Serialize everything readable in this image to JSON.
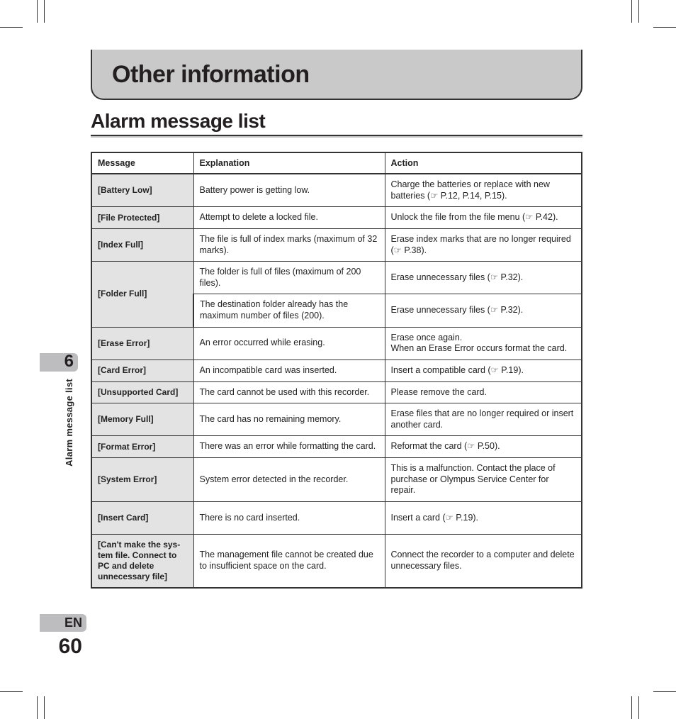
{
  "banner_title": "Other information",
  "subtitle": "Alarm message list",
  "chapter_number": "6",
  "side_label": "Alarm message list",
  "language": "EN",
  "page_number": "60",
  "headers": {
    "c1": "Message",
    "c2": "Explanation",
    "c3": "Action"
  },
  "rows": [
    {
      "msg": "[Battery Low]",
      "exp": "Battery power is getting low.",
      "act": "Charge the batteries or replace with new batteries (☞ P.12, P.14, P.15)."
    },
    {
      "msg": "[File Protected]",
      "exp": "Attempt to delete a locked file.",
      "act": "Unlock the file from the file menu (☞ P.42)."
    },
    {
      "msg": "[Index Full]",
      "exp": "The file is full of index marks (maximum of 32 marks).",
      "act": "Erase index marks that are no longer required (☞ P.38)."
    },
    {
      "msg": "[Folder Full]",
      "rowspan": 2,
      "exp": "The folder is full of files (maximum of 200 files).",
      "act": "Erase unnecessary files (☞ P.32)."
    },
    {
      "skip_msg": true,
      "exp": "The destination folder already has the maximum number of files (200).",
      "act": "Erase unnecessary files (☞ P.32)."
    },
    {
      "msg": "[Erase Error]",
      "exp": "An error occurred while erasing.",
      "act": "Erase once again.\nWhen an Erase Error occurs format the card."
    },
    {
      "msg": "[Card Error]",
      "exp": "An incompatible card was inserted.",
      "act": "Insert a compatible card (☞ P.19)."
    },
    {
      "msg": "[Unsupported Card]",
      "exp": "The card cannot be used with this recorder.",
      "act": "Please remove the card."
    },
    {
      "msg": "[Memory Full]",
      "exp": "The card has no remaining memory.",
      "act": "Erase files that are no longer required or insert another card."
    },
    {
      "msg": "[Format Error]",
      "exp": "There was an error while formatting the card.",
      "act": "Reformat the card (☞ P.50)."
    },
    {
      "msg": "[System Error]",
      "exp": "System error detected in the recorder.",
      "act": "This is a malfunction. Contact the place of purchase or Olympus Service Center for repair.",
      "tall": true
    },
    {
      "msg": "[Insert Card]",
      "exp": "There is no card inserted.",
      "act": "Insert a card (☞ P.19).",
      "tall": true
    },
    {
      "msg": "[Can't make the sys-tem file. Connect to PC and delete unnecessary file]",
      "exp": "The management file cannot be created due to insufficient space on the card.",
      "act": "Connect the recorder to a computer and delete unnecessary files.",
      "vtall": true
    }
  ],
  "colors": {
    "banner_bg": "#c9c9ca",
    "msg_bg": "#e3e3e4",
    "border": "#333333",
    "tab_bg": "#bdbdbf"
  }
}
